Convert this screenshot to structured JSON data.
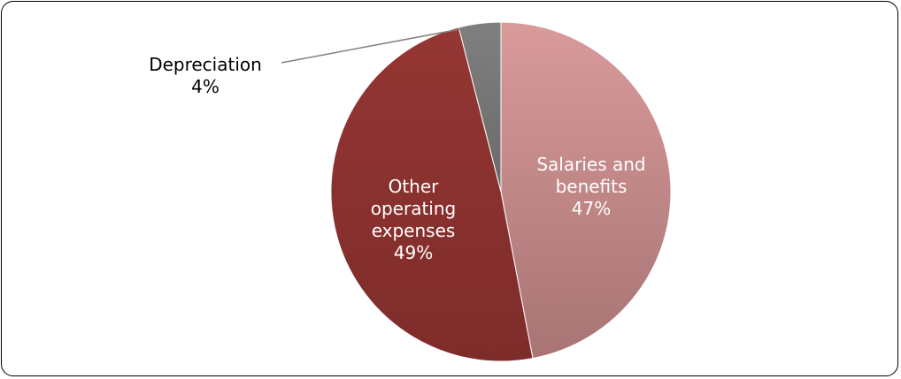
{
  "chart_data": {
    "type": "pie",
    "title": "",
    "slices": [
      {
        "label_lines": [
          "Salaries and",
          "benefits"
        ],
        "percent_label": "47%",
        "value": 47,
        "color": "#d99a9a",
        "color_dark": "#a87474",
        "label_color": "#ffffff"
      },
      {
        "label_lines": [
          "Other",
          "operating",
          "expenses"
        ],
        "percent_label": "49%",
        "value": 49,
        "color": "#943634",
        "color_dark": "#7e2c2a",
        "label_color": "#ffffff"
      },
      {
        "label_lines": [
          "Depreciation"
        ],
        "percent_label": "4%",
        "value": 4,
        "color": "#7f7f7f",
        "color_dark": "#6a6a6a",
        "label_color": "#000000"
      }
    ],
    "start": "12 o'clock",
    "direction": "clockwise",
    "legend": "none"
  }
}
